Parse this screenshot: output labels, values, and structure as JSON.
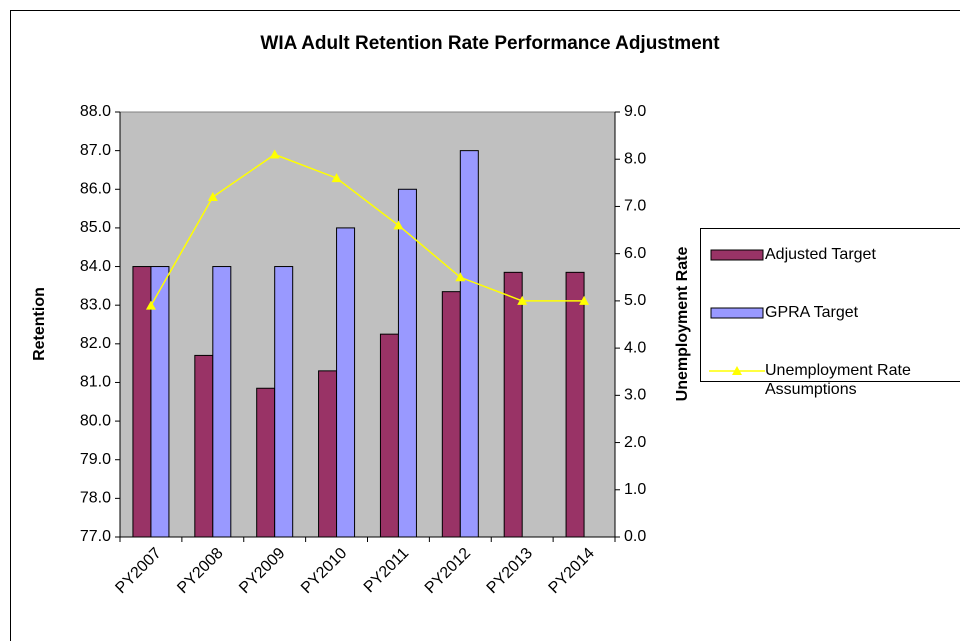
{
  "chart_data": {
    "type": "bar-line",
    "title": "WIA Adult Retention Rate Performance Adjustment",
    "y_label": "Retention",
    "y2_label": "Unemployment Rate",
    "categories": [
      "PY2007",
      "PY2008",
      "PY2009",
      "PY2010",
      "PY2011",
      "PY2012",
      "PY2013",
      "PY2014"
    ],
    "series": [
      {
        "name": "Adjusted Target",
        "type": "bar",
        "color": "#993366",
        "values": [
          84.0,
          81.7,
          80.85,
          81.3,
          82.25,
          83.35,
          83.85,
          83.85
        ]
      },
      {
        "name": "GPRA Target",
        "type": "bar",
        "color": "#9999ff",
        "values": [
          84.0,
          84.0,
          84.0,
          85.0,
          86.0,
          87.0,
          null,
          null
        ]
      },
      {
        "name": "Unemployment Rate Assumptions",
        "type": "line",
        "axis": "y2",
        "color": "#ffff00",
        "values": [
          4.9,
          7.2,
          8.1,
          7.6,
          6.6,
          5.5,
          5.0,
          5.0
        ]
      }
    ],
    "ylim": [
      77,
      88
    ],
    "yticks": [
      {
        "value": 77,
        "label": "77.0"
      },
      {
        "value": 78,
        "label": "78.0"
      },
      {
        "value": 79,
        "label": "79.0"
      },
      {
        "value": 80,
        "label": "80.0"
      },
      {
        "value": 81,
        "label": "81.0"
      },
      {
        "value": 82,
        "label": "82.0"
      },
      {
        "value": 83,
        "label": "83.0"
      },
      {
        "value": 84,
        "label": "84.0"
      },
      {
        "value": 85,
        "label": "85.0"
      },
      {
        "value": 86,
        "label": "86.0"
      },
      {
        "value": 87,
        "label": "87.0"
      },
      {
        "value": 88,
        "label": "88.0"
      }
    ],
    "y2lim": [
      0,
      9
    ],
    "y2ticks": [
      {
        "value": 0,
        "label": "0.0"
      },
      {
        "value": 1,
        "label": "1.0"
      },
      {
        "value": 2,
        "label": "2.0"
      },
      {
        "value": 3,
        "label": "3.0"
      },
      {
        "value": 4,
        "label": "4.0"
      },
      {
        "value": 5,
        "label": "5.0"
      },
      {
        "value": 6,
        "label": "6.0"
      },
      {
        "value": 7,
        "label": "7.0"
      },
      {
        "value": 8,
        "label": "8.0"
      },
      {
        "value": 9,
        "label": "9.0"
      }
    ],
    "plot_background": "#c0c0c0",
    "legend": "right"
  }
}
